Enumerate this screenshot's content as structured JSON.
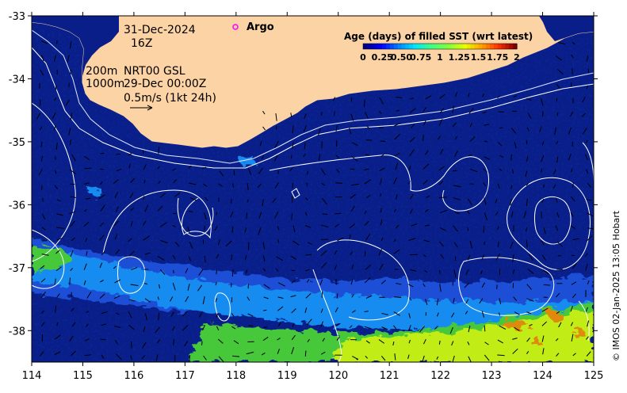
{
  "chart_data": {
    "type": "heatmap",
    "title": "Age (days) of filled SST (wrt latest)",
    "xlabel": "",
    "ylabel": "",
    "xlim": [
      114,
      125
    ],
    "ylim": [
      -38.5,
      -33
    ],
    "x_ticks": [
      "114",
      "115",
      "116",
      "117",
      "118",
      "119",
      "120",
      "121",
      "122",
      "123",
      "124",
      "125"
    ],
    "y_ticks": [
      "-33",
      "-34",
      "-35",
      "-36",
      "-37",
      "-38"
    ],
    "colorbar": {
      "range": [
        0,
        2
      ],
      "tick_labels": [
        "0",
        "0.25",
        "0.50",
        "0.75",
        "1",
        "1.25",
        "1.5",
        "1.75",
        "2"
      ],
      "colors": [
        "#00007f",
        "#0000ff",
        "#007fff",
        "#00e5ff",
        "#40ff7f",
        "#7fff40",
        "#e5ff00",
        "#ff9f00",
        "#ff3000",
        "#7f0000"
      ]
    },
    "bands": [
      {
        "name": "fresh-sst",
        "age_days": 0.1,
        "color": "#0a1e8a"
      },
      {
        "name": "mid-blue-band",
        "age_days": 0.35,
        "color": "#1a4fd6"
      },
      {
        "name": "light-blue-band",
        "age_days": 0.6,
        "color": "#168cf0"
      },
      {
        "name": "green-band",
        "age_days": 0.95,
        "color": "#46c83a"
      },
      {
        "name": "yellow-green-band",
        "age_days": 1.3,
        "color": "#c2ec18"
      },
      {
        "name": "orange-patches",
        "age_days": 1.6,
        "color": "#e08a10"
      }
    ],
    "land_color": "#fcd3a4"
  },
  "annotations": {
    "date": "31-Dec-2024",
    "hour": "16Z",
    "isobath_shallow": "200m",
    "isobath_deep": "1000m",
    "product": "NRT00 GSL",
    "product_time": "29-Dec 00:00Z",
    "vector_scale": "0.5m/s (1kt 24h)",
    "argo_label": "Argo"
  },
  "copyright": "© IMOS 02-Jan-2025 13:05 Hobart",
  "colors": {
    "land": "#fcd3a4",
    "argo_marker": "#ff00ff",
    "contour": "#ffffff",
    "vector": "#000000"
  }
}
